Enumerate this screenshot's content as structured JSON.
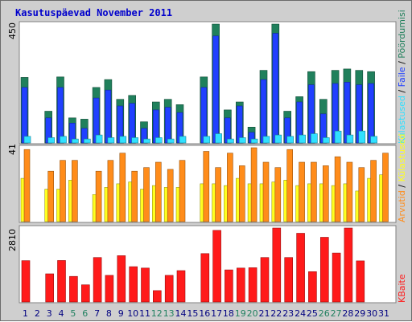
{
  "window": {
    "title": "Kasutuspäevad November 2011"
  },
  "colors": {
    "background": "#cfcfcf",
    "plot": "#ffffff",
    "kulastused": "#20805c",
    "failid": "#2040ff",
    "pordumised": "#30e0ff",
    "kulastajad": "#ffff20",
    "arvutid": "#ff8c1a",
    "kbaite": "#ff1a1a",
    "weekend_label": "#208060",
    "weekday_label": "#000080"
  },
  "chart_data": [
    {
      "type": "bar",
      "panel": "top",
      "x": [
        1,
        2,
        3,
        4,
        5,
        6,
        7,
        8,
        9,
        10,
        11,
        12,
        13,
        14,
        15,
        16,
        17,
        18,
        19,
        20,
        21,
        22,
        23,
        24,
        25,
        26,
        27,
        28,
        29,
        30,
        31
      ],
      "y_tick_label": "450",
      "ylim": [
        0,
        450
      ],
      "series": [
        {
          "name": "Pöördumisi",
          "color": "#20805c",
          "values": [
            248,
            0,
            120,
            250,
            95,
            90,
            210,
            240,
            165,
            180,
            80,
            155,
            165,
            145,
            0,
            250,
            450,
            125,
            155,
            60,
            275,
            450,
            120,
            175,
            270,
            165,
            275,
            280,
            275,
            270,
            0
          ]
        },
        {
          "name": "Faile",
          "color": "#2040ff",
          "values": [
            210,
            0,
            95,
            210,
            75,
            55,
            170,
            200,
            140,
            150,
            55,
            125,
            135,
            115,
            0,
            210,
            405,
            95,
            140,
            40,
            240,
            415,
            95,
            155,
            220,
            110,
            225,
            230,
            220,
            225,
            0
          ]
        },
        {
          "name": "Lehekülgi",
          "color": "#30e0ff",
          "values": [
            25,
            0,
            20,
            25,
            15,
            15,
            30,
            20,
            25,
            20,
            15,
            20,
            15,
            25,
            0,
            25,
            35,
            15,
            20,
            15,
            25,
            30,
            25,
            30,
            35,
            20,
            45,
            30,
            45,
            25,
            0
          ]
        }
      ]
    },
    {
      "type": "bar",
      "panel": "middle",
      "x": [
        1,
        2,
        3,
        4,
        5,
        6,
        7,
        8,
        9,
        10,
        11,
        12,
        13,
        14,
        15,
        16,
        17,
        18,
        19,
        20,
        21,
        22,
        23,
        24,
        25,
        26,
        27,
        28,
        29,
        30,
        31
      ],
      "y_tick_label": "41",
      "ylim": [
        0,
        41
      ],
      "series": [
        {
          "name": "Arvutid",
          "color": "#ff8c1a",
          "values": [
            40,
            0,
            28,
            34,
            34,
            0,
            28,
            34,
            38,
            28,
            30,
            33,
            29,
            34,
            0,
            39,
            30,
            38,
            31,
            41,
            33,
            30,
            40,
            33,
            33,
            31,
            36,
            33,
            30,
            34,
            38
          ]
        },
        {
          "name": "Külastused",
          "color": "#ffff20",
          "values": [
            24,
            0,
            18,
            18,
            23,
            0,
            15,
            19,
            21,
            22,
            18,
            20,
            19,
            19,
            0,
            21,
            21,
            20,
            24,
            21,
            21,
            22,
            23,
            20,
            21,
            21,
            20,
            21,
            17,
            24,
            26
          ]
        }
      ]
    },
    {
      "type": "bar",
      "panel": "bottom",
      "x": [
        1,
        2,
        3,
        4,
        5,
        6,
        7,
        8,
        9,
        10,
        11,
        12,
        13,
        14,
        15,
        16,
        17,
        18,
        19,
        20,
        21,
        22,
        23,
        24,
        25,
        26,
        27,
        28,
        29,
        30,
        31
      ],
      "y_tick_label": "2810",
      "ylim": [
        0,
        2810
      ],
      "series": [
        {
          "name": "KBaite",
          "color": "#ff1a1a",
          "values": [
            1570,
            0,
            1070,
            1575,
            970,
            650,
            1690,
            1010,
            1760,
            1340,
            1290,
            430,
            1010,
            1190,
            0,
            1840,
            2720,
            1220,
            1290,
            1300,
            1690,
            2810,
            1690,
            2610,
            1150,
            2460,
            1860,
            2810,
            1560,
            0,
            0
          ]
        }
      ]
    }
  ],
  "day_labels": [
    "1",
    "2",
    "3",
    "4",
    "5",
    "6",
    "7",
    "8",
    "9",
    "10",
    "11",
    "12",
    "13",
    "14",
    "15",
    "16",
    "17",
    "18",
    "19",
    "20",
    "21",
    "22",
    "23",
    "24",
    "25",
    "26",
    "27",
    "28",
    "29",
    "30",
    "31"
  ],
  "weekend_days": [
    5,
    6,
    12,
    13,
    19,
    20,
    26,
    27
  ],
  "y_ticks": {
    "top": "450",
    "middle": "41",
    "bottom": "2810"
  },
  "right_labels": {
    "top": [
      "Külastused",
      " / ",
      "Faile",
      " / ",
      "Pöördumisi"
    ],
    "middle": [
      "Arvutid",
      " / ",
      "Külastused"
    ],
    "bottom": "KBaite"
  }
}
